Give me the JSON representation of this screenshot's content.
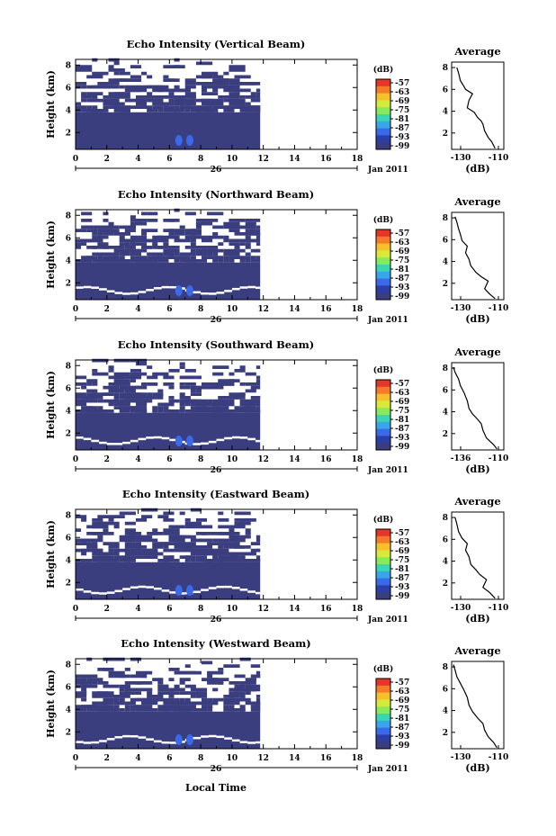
{
  "figure": {
    "xlabel": "Local Time",
    "date_label": "26",
    "month_year_label": "Jan 2011",
    "colorbar_unit": "(dB)",
    "avg_title": "Average",
    "avg_xlabel": "(dB)",
    "ylabel": "Height (km)"
  },
  "chart_data": [
    {
      "type": "heatmap",
      "title": "Echo Intensity (Vertical Beam)",
      "ylabel": "Height (km)",
      "x_ticks": [
        "0",
        "2",
        "4",
        "6",
        "8",
        "10",
        "12",
        "14",
        "16",
        "18"
      ],
      "y_ticks": [
        "2",
        "4",
        "6",
        "8"
      ],
      "xlim": [
        0,
        18
      ],
      "ylim": [
        0.5,
        8.5
      ],
      "colorbar": {
        "unit": "(dB)",
        "ticks": [
          "-57",
          "-63",
          "-69",
          "-75",
          "-81",
          "-87",
          "-93",
          "-99"
        ]
      },
      "average_profile": {
        "title": "Average",
        "xlabel": "(dB)",
        "x_ticks": [
          "-130",
          "-110"
        ],
        "y_ticks": [
          "2",
          "4",
          "6",
          "8"
        ],
        "points": [
          [
            -111,
            0.6
          ],
          [
            -113,
            1.2
          ],
          [
            -115,
            1.6
          ],
          [
            -117,
            2.2
          ],
          [
            -118,
            2.8
          ],
          [
            -119,
            3.1
          ],
          [
            -121,
            3.4
          ],
          [
            -123,
            3.9
          ],
          [
            -127,
            4.3
          ],
          [
            -126,
            5.0
          ],
          [
            -124,
            5.6
          ],
          [
            -128,
            6.0
          ],
          [
            -129,
            6.3
          ],
          [
            -131,
            6.8
          ],
          [
            -132,
            7.5
          ],
          [
            -133,
            8.0
          ]
        ]
      }
    },
    {
      "type": "heatmap",
      "title": "Echo Intensity (Northward Beam)",
      "ylabel": "Height (km)",
      "x_ticks": [
        "0",
        "2",
        "4",
        "6",
        "8",
        "10",
        "12",
        "14",
        "16",
        "18"
      ],
      "y_ticks": [
        "2",
        "4",
        "6",
        "8"
      ],
      "xlim": [
        0,
        18
      ],
      "ylim": [
        0.5,
        8.5
      ],
      "colorbar": {
        "unit": "(dB)",
        "ticks": [
          "-57",
          "-63",
          "-69",
          "-75",
          "-81",
          "-87",
          "-93",
          "-99"
        ]
      },
      "average_profile": {
        "title": "Average",
        "xlabel": "(dB)",
        "x_ticks": [
          "-130",
          "-110"
        ],
        "y_ticks": [
          "2",
          "4",
          "6",
          "8"
        ],
        "points": [
          [
            -111,
            0.6
          ],
          [
            -114,
            1.0
          ],
          [
            -117,
            1.5
          ],
          [
            -115,
            2.2
          ],
          [
            -119,
            2.6
          ],
          [
            -122,
            3.0
          ],
          [
            -125,
            3.6
          ],
          [
            -126,
            4.2
          ],
          [
            -128,
            4.8
          ],
          [
            -127,
            5.4
          ],
          [
            -130,
            5.9
          ],
          [
            -131,
            6.5
          ],
          [
            -132,
            7.0
          ],
          [
            -133,
            7.6
          ],
          [
            -134,
            8.1
          ]
        ]
      }
    },
    {
      "type": "heatmap",
      "title": "Echo Intensity (Southward Beam)",
      "ylabel": "Height (km)",
      "x_ticks": [
        "0",
        "2",
        "4",
        "6",
        "8",
        "10",
        "12",
        "14",
        "16",
        "18"
      ],
      "y_ticks": [
        "2",
        "4",
        "6",
        "8"
      ],
      "xlim": [
        0,
        18
      ],
      "ylim": [
        0.5,
        8.5
      ],
      "colorbar": {
        "unit": "(dB)",
        "ticks": [
          "-57",
          "-63",
          "-69",
          "-75",
          "-81",
          "-87",
          "-93",
          "-99"
        ]
      },
      "average_profile": {
        "title": "Average",
        "xlabel": "(dB)",
        "x_ticks": [
          "-136",
          "-110"
        ],
        "y_ticks": [
          "2",
          "4",
          "6",
          "8"
        ],
        "points": [
          [
            -110,
            0.6
          ],
          [
            -112,
            1.0
          ],
          [
            -116,
            1.6
          ],
          [
            -118,
            2.3
          ],
          [
            -119,
            2.9
          ],
          [
            -121,
            3.3
          ],
          [
            -124,
            3.8
          ],
          [
            -126,
            4.3
          ],
          [
            -127,
            5.0
          ],
          [
            -129,
            5.8
          ],
          [
            -131,
            6.4
          ],
          [
            -132,
            7.0
          ],
          [
            -134,
            7.6
          ],
          [
            -135,
            8.1
          ]
        ]
      }
    },
    {
      "type": "heatmap",
      "title": "Echo Intensity (Eastward Beam)",
      "ylabel": "Height (km)",
      "x_ticks": [
        "0",
        "2",
        "4",
        "6",
        "8",
        "10",
        "12",
        "14",
        "16",
        "18"
      ],
      "y_ticks": [
        "2",
        "4",
        "6",
        "8"
      ],
      "xlim": [
        0,
        18
      ],
      "ylim": [
        0.5,
        8.5
      ],
      "colorbar": {
        "unit": "(dB)",
        "ticks": [
          "-57",
          "-63",
          "-69",
          "-75",
          "-81",
          "-87",
          "-93",
          "-99"
        ]
      },
      "average_profile": {
        "title": "Average",
        "xlabel": "(dB)",
        "x_ticks": [
          "-130",
          "-110"
        ],
        "y_ticks": [
          "2",
          "4",
          "6",
          "8"
        ],
        "points": [
          [
            -111,
            0.6
          ],
          [
            -114,
            1.1
          ],
          [
            -118,
            1.6
          ],
          [
            -116,
            2.3
          ],
          [
            -120,
            2.8
          ],
          [
            -122,
            3.2
          ],
          [
            -125,
            3.7
          ],
          [
            -126,
            4.4
          ],
          [
            -128,
            5.0
          ],
          [
            -127,
            5.6
          ],
          [
            -130,
            6.1
          ],
          [
            -132,
            6.7
          ],
          [
            -133,
            7.4
          ],
          [
            -134,
            8.0
          ]
        ]
      }
    },
    {
      "type": "heatmap",
      "title": "Echo Intensity (Westward Beam)",
      "ylabel": "Height (km)",
      "x_ticks": [
        "0",
        "2",
        "4",
        "6",
        "8",
        "10",
        "12",
        "14",
        "16",
        "18"
      ],
      "y_ticks": [
        "2",
        "4",
        "6",
        "8"
      ],
      "xlim": [
        0,
        18
      ],
      "ylim": [
        0.5,
        8.5
      ],
      "colorbar": {
        "unit": "(dB)",
        "ticks": [
          "-57",
          "-63",
          "-69",
          "-75",
          "-81",
          "-87",
          "-93",
          "-99"
        ]
      },
      "average_profile": {
        "title": "Average",
        "xlabel": "(dB)",
        "x_ticks": [
          "-130",
          "-110"
        ],
        "y_ticks": [
          "2",
          "4",
          "6",
          "8"
        ],
        "points": [
          [
            -110,
            0.6
          ],
          [
            -112,
            1.1
          ],
          [
            -115,
            1.6
          ],
          [
            -117,
            2.2
          ],
          [
            -118,
            2.8
          ],
          [
            -121,
            3.3
          ],
          [
            -124,
            3.9
          ],
          [
            -126,
            4.5
          ],
          [
            -127,
            5.2
          ],
          [
            -129,
            5.9
          ],
          [
            -131,
            6.5
          ],
          [
            -133,
            7.1
          ],
          [
            -134,
            7.7
          ],
          [
            -135,
            8.2
          ]
        ]
      }
    }
  ]
}
